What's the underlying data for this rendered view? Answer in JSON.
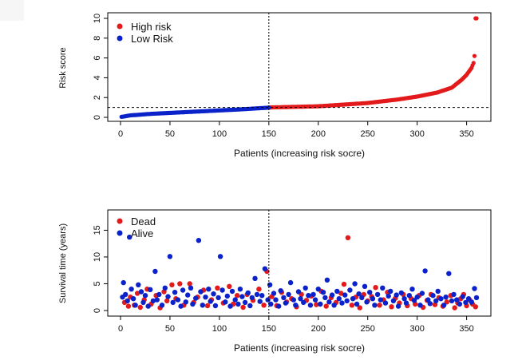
{
  "chart_data": [
    {
      "type": "scatter",
      "xlabel": "Patients (increasing risk socre)",
      "ylabel": "Risk score",
      "xlim": [
        0,
        360
      ],
      "ylim": [
        0,
        10
      ],
      "xticks": [
        0,
        50,
        100,
        150,
        200,
        250,
        300,
        350
      ],
      "yticks": [
        0,
        2,
        4,
        6,
        8,
        10
      ],
      "cutoff_x": 150,
      "cutoff_y": 1.0,
      "legend": "top-left",
      "series": [
        {
          "name": "High risk",
          "color": "#e31a1c",
          "x_range": [
            151,
            360
          ],
          "y_samples": [
            [
              151,
              1.0
            ],
            [
              200,
              1.12
            ],
            [
              250,
              1.45
            ],
            [
              280,
              1.8
            ],
            [
              300,
              2.1
            ],
            [
              320,
              2.5
            ],
            [
              335,
              3.0
            ],
            [
              345,
              3.8
            ],
            [
              350,
              4.3
            ],
            [
              355,
              5.0
            ],
            [
              357,
              5.5
            ],
            [
              358,
              6.2
            ],
            [
              359,
              10.0
            ]
          ]
        },
        {
          "name": "Low Risk",
          "color": "#0a22c9",
          "x_range": [
            1,
            150
          ],
          "y_samples": [
            [
              1,
              0.05
            ],
            [
              10,
              0.2
            ],
            [
              30,
              0.35
            ],
            [
              60,
              0.5
            ],
            [
              90,
              0.65
            ],
            [
              120,
              0.8
            ],
            [
              150,
              0.98
            ]
          ]
        }
      ]
    },
    {
      "type": "scatter",
      "xlabel": "Patients (increasing risk socre)",
      "ylabel": "Survival time (years)",
      "xlim": [
        0,
        360
      ],
      "ylim": [
        0,
        17
      ],
      "xticks": [
        0,
        50,
        100,
        150,
        200,
        250,
        300,
        350
      ],
      "yticks": [
        0,
        5,
        10,
        15
      ],
      "cutoff_x": 150,
      "legend": "top-left",
      "series": [
        {
          "name": "Dead",
          "color": "#e31a1c",
          "points": [
            [
              4,
              1.5
            ],
            [
              8,
              0.8
            ],
            [
              10,
              2.5
            ],
            [
              14,
              1.0
            ],
            [
              17,
              3.2
            ],
            [
              20,
              0.6
            ],
            [
              24,
              2.0
            ],
            [
              27,
              4.0
            ],
            [
              31,
              1.2
            ],
            [
              36,
              2.8
            ],
            [
              40,
              0.5
            ],
            [
              44,
              3.5
            ],
            [
              47,
              1.8
            ],
            [
              52,
              4.8
            ],
            [
              56,
              2.2
            ],
            [
              60,
              5.0
            ],
            [
              64,
              1.0
            ],
            [
              70,
              5.0
            ],
            [
              74,
              1.5
            ],
            [
              78,
              2.5
            ],
            [
              84,
              3.8
            ],
            [
              88,
              0.9
            ],
            [
              92,
              2.0
            ],
            [
              98,
              4.2
            ],
            [
              104,
              1.4
            ],
            [
              110,
              4.5
            ],
            [
              114,
              1.2
            ],
            [
              118,
              2.8
            ],
            [
              124,
              0.6
            ],
            [
              128,
              3.0
            ],
            [
              134,
              1.9
            ],
            [
              140,
              4.0
            ],
            [
              145,
              1.0
            ],
            [
              148,
              7.3
            ],
            [
              153,
              2.6
            ],
            [
              158,
              0.9
            ],
            [
              163,
              3.4
            ],
            [
              168,
              1.6
            ],
            [
              173,
              2.2
            ],
            [
              178,
              0.7
            ],
            [
              183,
              3.0
            ],
            [
              188,
              1.9
            ],
            [
              193,
              2.7
            ],
            [
              198,
              1.1
            ],
            [
              203,
              3.6
            ],
            [
              208,
              0.8
            ],
            [
              213,
              2.4
            ],
            [
              218,
              1.5
            ],
            [
              223,
              3.2
            ],
            [
              226,
              4.9
            ],
            [
              230,
              13.6
            ],
            [
              234,
              1.0
            ],
            [
              238,
              2.5
            ],
            [
              242,
              0.5
            ],
            [
              246,
              3.0
            ],
            [
              250,
              1.8
            ],
            [
              254,
              2.6
            ],
            [
              258,
              4.3
            ],
            [
              262,
              1.0
            ],
            [
              266,
              2.0
            ],
            [
              270,
              3.4
            ],
            [
              274,
              0.7
            ],
            [
              278,
              2.3
            ],
            [
              282,
              1.4
            ],
            [
              286,
              3.0
            ],
            [
              290,
              0.9
            ],
            [
              294,
              2.2
            ],
            [
              298,
              1.2
            ],
            [
              302,
              2.8
            ],
            [
              306,
              0.6
            ],
            [
              310,
              1.9
            ],
            [
              314,
              3.0
            ],
            [
              318,
              1.1
            ],
            [
              322,
              2.4
            ],
            [
              326,
              0.8
            ],
            [
              330,
              1.6
            ],
            [
              334,
              2.8
            ],
            [
              338,
              0.5
            ],
            [
              341,
              1.4
            ],
            [
              344,
              2.2
            ],
            [
              347,
              3.0
            ],
            [
              350,
              0.9
            ],
            [
              353,
              2.0
            ],
            [
              356,
              1.2
            ],
            [
              359,
              0.7
            ]
          ]
        },
        {
          "name": "Alive",
          "color": "#0a22c9",
          "points": [
            [
              2,
              2.5
            ],
            [
              3,
              5.2
            ],
            [
              5,
              3.0
            ],
            [
              7,
              1.8
            ],
            [
              9,
              13.7
            ],
            [
              11,
              4.0
            ],
            [
              13,
              2.2
            ],
            [
              15,
              1.0
            ],
            [
              18,
              4.8
            ],
            [
              21,
              3.5
            ],
            [
              23,
              1.5
            ],
            [
              25,
              2.8
            ],
            [
              28,
              0.8
            ],
            [
              30,
              3.9
            ],
            [
              33,
              1.8
            ],
            [
              35,
              7.3
            ],
            [
              37,
              2.0
            ],
            [
              39,
              3.0
            ],
            [
              42,
              1.0
            ],
            [
              45,
              4.2
            ],
            [
              48,
              2.6
            ],
            [
              50,
              10.1
            ],
            [
              53,
              1.5
            ],
            [
              55,
              3.4
            ],
            [
              58,
              2.0
            ],
            [
              61,
              0.8
            ],
            [
              63,
              3.8
            ],
            [
              66,
              1.6
            ],
            [
              68,
              2.9
            ],
            [
              71,
              4.2
            ],
            [
              73,
              1.2
            ],
            [
              76,
              2.3
            ],
            [
              79,
              13.1
            ],
            [
              81,
              3.5
            ],
            [
              83,
              1.0
            ],
            [
              86,
              2.5
            ],
            [
              89,
              4.0
            ],
            [
              91,
              1.7
            ],
            [
              94,
              3.1
            ],
            [
              96,
              0.9
            ],
            [
              99,
              2.4
            ],
            [
              101,
              10.1
            ],
            [
              103,
              3.8
            ],
            [
              106,
              1.6
            ],
            [
              108,
              2.7
            ],
            [
              111,
              0.8
            ],
            [
              113,
              3.6
            ],
            [
              116,
              2.0
            ],
            [
              119,
              1.2
            ],
            [
              121,
              4.0
            ],
            [
              123,
              2.6
            ],
            [
              126,
              1.5
            ],
            [
              129,
              3.3
            ],
            [
              131,
              0.9
            ],
            [
              133,
              2.4
            ],
            [
              136,
              6.0
            ],
            [
              138,
              3.0
            ],
            [
              141,
              1.7
            ],
            [
              143,
              2.8
            ],
            [
              146,
              7.8
            ],
            [
              149,
              2.0
            ],
            [
              151,
              4.8
            ],
            [
              152,
              1.2
            ],
            [
              155,
              3.2
            ],
            [
              157,
              2.0
            ],
            [
              160,
              0.8
            ],
            [
              162,
              3.7
            ],
            [
              165,
              2.4
            ],
            [
              167,
              1.4
            ],
            [
              170,
              3.0
            ],
            [
              172,
              5.2
            ],
            [
              175,
              2.0
            ],
            [
              177,
              1.0
            ],
            [
              180,
              3.5
            ],
            [
              182,
              2.2
            ],
            [
              185,
              1.5
            ],
            [
              187,
              4.2
            ],
            [
              190,
              2.8
            ],
            [
              192,
              1.0
            ],
            [
              195,
              3.0
            ],
            [
              197,
              2.0
            ],
            [
              200,
              4.0
            ],
            [
              202,
              1.2
            ],
            [
              205,
              3.4
            ],
            [
              207,
              2.4
            ],
            [
              209,
              5.7
            ],
            [
              211,
              1.6
            ],
            [
              214,
              2.9
            ],
            [
              216,
              1.0
            ],
            [
              219,
              3.6
            ],
            [
              221,
              2.2
            ],
            [
              224,
              1.4
            ],
            [
              227,
              2.9
            ],
            [
              229,
              1.8
            ],
            [
              232,
              3.8
            ],
            [
              235,
              2.2
            ],
            [
              237,
              5.0
            ],
            [
              239,
              1.2
            ],
            [
              241,
              3.1
            ],
            [
              244,
              2.4
            ],
            [
              247,
              4.5
            ],
            [
              249,
              1.6
            ],
            [
              252,
              3.4
            ],
            [
              255,
              2.2
            ],
            [
              257,
              1.0
            ],
            [
              260,
              3.0
            ],
            [
              263,
              2.0
            ],
            [
              265,
              4.2
            ],
            [
              268,
              1.4
            ],
            [
              271,
              2.7
            ],
            [
              273,
              3.6
            ],
            [
              276,
              1.8
            ],
            [
              279,
              2.9
            ],
            [
              281,
              0.8
            ],
            [
              284,
              3.3
            ],
            [
              287,
              2.2
            ],
            [
              289,
              1.4
            ],
            [
              292,
              2.8
            ],
            [
              295,
              4.0
            ],
            [
              297,
              1.9
            ],
            [
              300,
              2.5
            ],
            [
              303,
              1.0
            ],
            [
              305,
              3.2
            ],
            [
              308,
              7.4
            ],
            [
              311,
              2.0
            ],
            [
              313,
              1.3
            ],
            [
              316,
              2.8
            ],
            [
              319,
              1.8
            ],
            [
              321,
              3.6
            ],
            [
              324,
              2.2
            ],
            [
              327,
              1.0
            ],
            [
              329,
              2.5
            ],
            [
              332,
              6.9
            ],
            [
              335,
              1.8
            ],
            [
              337,
              3.0
            ],
            [
              340,
              2.0
            ],
            [
              343,
              1.2
            ],
            [
              346,
              2.6
            ],
            [
              349,
              1.5
            ],
            [
              352,
              2.2
            ],
            [
              355,
              1.6
            ],
            [
              358,
              4.1
            ],
            [
              360,
              2.4
            ]
          ]
        }
      ]
    }
  ]
}
